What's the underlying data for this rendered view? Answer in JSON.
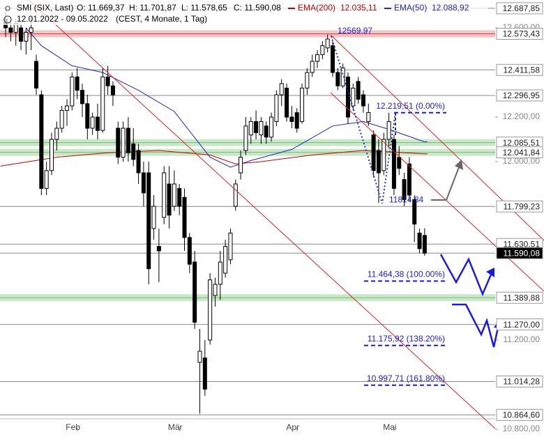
{
  "chart_data": {
    "type": "candlestick",
    "title": "SMI (SIX, Last)",
    "header": [
      "O: 11.669,37",
      "H: 11.701,87",
      "L: 11.578,65",
      "C: 11.590,08"
    ],
    "date_range": "12.01.2022 - 09.05.2022",
    "info": "(CEST, 4 Monate, 1 Tag)",
    "ylim": [
      10772,
      12725
    ],
    "xlim": [
      -1.1,
      95.8
    ],
    "yticks": [
      {
        "value": 12600,
        "label": "12.600,00"
      },
      {
        "value": 12200,
        "label": "12.200,00"
      },
      {
        "value": 12000,
        "label": "12.000,00"
      },
      {
        "value": 11200,
        "label": "11.200,00"
      },
      {
        "value": 10800,
        "label": "10.800,00"
      }
    ],
    "xticks": [
      {
        "value": 14,
        "label": "Feb"
      },
      {
        "value": 34,
        "label": "Mär"
      },
      {
        "value": 57,
        "label": "Apr"
      },
      {
        "value": 76,
        "label": "Mai"
      }
    ],
    "candles": [
      [
        12640,
        12690,
        12560,
        12600
      ],
      [
        12600,
        12650,
        12540,
        12580
      ],
      [
        12580,
        12640,
        12520,
        12620
      ],
      [
        12600,
        12620,
        12500,
        12540
      ],
      [
        12540,
        12600,
        12480,
        12580
      ],
      [
        12580,
        12650,
        12500,
        12600
      ],
      [
        12450,
        12480,
        12300,
        12330
      ],
      [
        12300,
        12320,
        11850,
        11880
      ],
      [
        11880,
        12000,
        11850,
        11960
      ],
      [
        11960,
        12130,
        11940,
        12100
      ],
      [
        12100,
        12180,
        12050,
        12150
      ],
      [
        12150,
        12250,
        12130,
        12230
      ],
      [
        12230,
        12280,
        12160,
        12250
      ],
      [
        12250,
        12400,
        12230,
        12380
      ],
      [
        12380,
        12420,
        12280,
        12320
      ],
      [
        12320,
        12350,
        12200,
        12260
      ],
      [
        12260,
        12300,
        12100,
        12150
      ],
      [
        12150,
        12220,
        12120,
        12200
      ],
      [
        12200,
        12260,
        12100,
        12140
      ],
      [
        12140,
        12420,
        12130,
        12380
      ],
      [
        12380,
        12430,
        12300,
        12340
      ],
      [
        12340,
        12360,
        12250,
        12300
      ],
      [
        12150,
        12180,
        11990,
        12020
      ],
      [
        12020,
        12180,
        12000,
        12150
      ],
      [
        12150,
        12200,
        12000,
        12040
      ],
      [
        12080,
        12150,
        11980,
        12010
      ],
      [
        12050,
        12080,
        11900,
        11950
      ],
      [
        11950,
        12000,
        11800,
        11860
      ],
      [
        11950,
        12000,
        11450,
        11520
      ],
      [
        11700,
        11850,
        11650,
        11800
      ],
      [
        11620,
        11700,
        11460,
        11600
      ],
      [
        11750,
        11980,
        11720,
        11950
      ],
      [
        11900,
        11980,
        11700,
        11760
      ],
      [
        11800,
        11960,
        11780,
        11900
      ],
      [
        11880,
        11900,
        11760,
        11800
      ],
      [
        11840,
        11880,
        11600,
        11660
      ],
      [
        11660,
        11680,
        11500,
        11540
      ],
      [
        11550,
        11600,
        11250,
        11280
      ],
      [
        11100,
        11250,
        10870,
        11150
      ],
      [
        11120,
        11200,
        10950,
        10980
      ],
      [
        11200,
        11500,
        11180,
        11470
      ],
      [
        11400,
        11480,
        11350,
        11450
      ],
      [
        11450,
        11600,
        11380,
        11550
      ],
      [
        11500,
        11650,
        11480,
        11620
      ],
      [
        11560,
        11700,
        11540,
        11680
      ],
      [
        11800,
        11920,
        11780,
        11900
      ],
      [
        11950,
        12050,
        11920,
        12020
      ],
      [
        12050,
        12200,
        12030,
        12160
      ],
      [
        12120,
        12200,
        12080,
        12180
      ],
      [
        12180,
        12230,
        12100,
        12130
      ],
      [
        12120,
        12200,
        12080,
        12180
      ],
      [
        12160,
        12180,
        12080,
        12110
      ],
      [
        12110,
        12220,
        12090,
        12200
      ],
      [
        12180,
        12320,
        12160,
        12300
      ],
      [
        12300,
        12370,
        12250,
        12350
      ],
      [
        12330,
        12350,
        12180,
        12200
      ],
      [
        12200,
        12250,
        12150,
        12180
      ],
      [
        12220,
        12240,
        12130,
        12150
      ],
      [
        12180,
        12350,
        12170,
        12330
      ],
      [
        12330,
        12420,
        12300,
        12400
      ],
      [
        12400,
        12480,
        12380,
        12450
      ],
      [
        12450,
        12500,
        12420,
        12480
      ],
      [
        12480,
        12540,
        12460,
        12520
      ],
      [
        12510,
        12569.97,
        12490,
        12550
      ],
      [
        12520,
        12540,
        12380,
        12400
      ],
      [
        12400,
        12420,
        12320,
        12340
      ],
      [
        12340,
        12440,
        12330,
        12420
      ],
      [
        12380,
        12400,
        12170,
        12200
      ],
      [
        12250,
        12350,
        12230,
        12330
      ],
      [
        12360,
        12380,
        12260,
        12280
      ],
      [
        12300,
        12320,
        12220,
        12250
      ],
      [
        12180,
        12260,
        12160,
        12220
      ],
      [
        12120,
        12140,
        11930,
        11960
      ],
      [
        12050,
        12100,
        11814.84,
        11950
      ],
      [
        11960,
        12130,
        11940,
        12100
      ],
      [
        12100,
        12219.51,
        12060,
        12180
      ],
      [
        12100,
        12120,
        11850,
        11880
      ],
      [
        12020,
        12070,
        11940,
        11970
      ],
      [
        11920,
        11950,
        11800,
        11830
      ],
      [
        11990,
        12020,
        11820,
        11850
      ],
      [
        11830,
        11850,
        11640,
        11720
      ],
      [
        11680,
        11700,
        11590,
        11610
      ],
      [
        11669.37,
        11701.87,
        11578.65,
        11590.08
      ]
    ],
    "series": [
      {
        "name": "EMA(200)",
        "color": "#cc0000",
        "x": [
          -1,
          10,
          20,
          30,
          40,
          45,
          50,
          60,
          70,
          82
        ],
        "values": [
          11980,
          12020,
          12040,
          12050,
          12030,
          11990,
          12000,
          12030,
          12050,
          12035.11
        ],
        "last": {
          "value": 12035.11,
          "label": "12.035,11"
        }
      },
      {
        "name": "EMA(50)",
        "color": "#2222cc",
        "x": [
          4,
          7,
          13,
          19,
          26,
          33,
          40,
          44,
          48,
          56,
          64,
          70,
          75,
          82
        ],
        "values": [
          12600,
          12520,
          12430,
          12400,
          12320,
          12225,
          12020,
          11975,
          12005,
          12055,
          12160,
          12180,
          12145,
          12088.92
        ],
        "last": {
          "value": 12088.92,
          "label": "12.088,92"
        }
      }
    ],
    "levels": [
      {
        "value": 12687.85,
        "label": "12.687,85",
        "style": "line"
      },
      {
        "value": 12573.43,
        "label": "12.573,43",
        "style": "red-band"
      },
      {
        "value": 12411.58,
        "label": "12.411,58",
        "style": "line"
      },
      {
        "value": 12296.95,
        "label": "12.296,95",
        "style": "line"
      },
      {
        "value": 12085.51,
        "label": "12.085,51",
        "style": "green-band"
      },
      {
        "value": 12041.84,
        "label": "12.041,84",
        "style": "green-band"
      },
      {
        "value": 11799.23,
        "label": "11.799,23",
        "style": "line"
      },
      {
        "value": 11630.51,
        "label": "11.630,51",
        "style": "line"
      },
      {
        "value": 11590.08,
        "label": "11.590,08",
        "style": "last"
      },
      {
        "value": 11389.88,
        "label": "11.389,88",
        "style": "green-band"
      },
      {
        "value": 11270,
        "label": "11.270,00",
        "style": "line"
      },
      {
        "value": 11014.28,
        "label": "11.014,28",
        "style": "line"
      },
      {
        "value": 10864.6,
        "label": "10.864,60",
        "style": "line"
      }
    ],
    "fib": [
      {
        "value": 12219.51,
        "label": "12.219,51 (0.00%)"
      },
      {
        "value": 11464.38,
        "label": "11.464,38 (100.00%)"
      },
      {
        "value": 11175.92,
        "label": "11.175,92 (138.20%)"
      },
      {
        "value": 10997.71,
        "label": "10.997,71 (161.80%)"
      }
    ],
    "annotations": [
      12569.97,
      11814.84
    ]
  }
}
